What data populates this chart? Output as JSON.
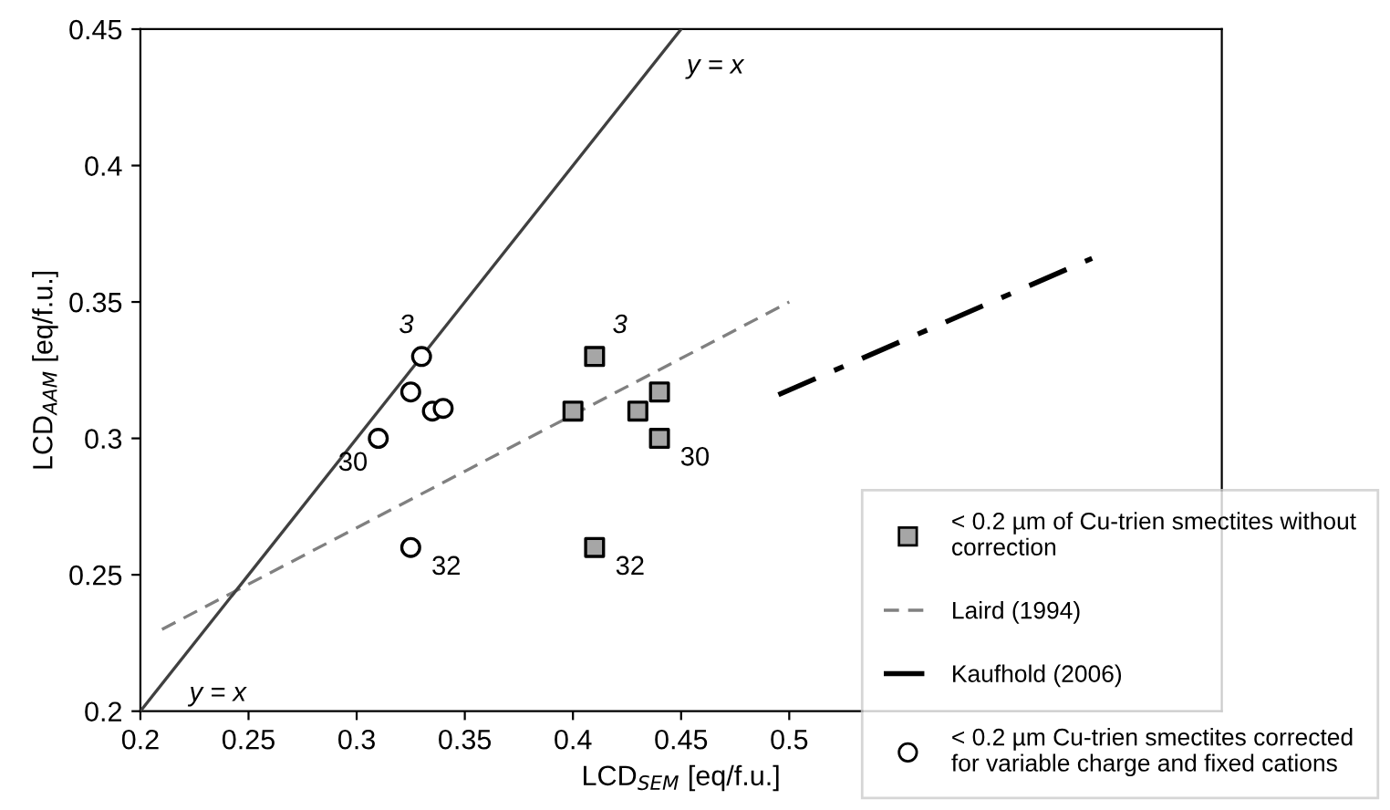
{
  "chart_data": {
    "type": "scatter",
    "xlabel": "LCD$_{SEM}$ [eq/f.u.]",
    "ylabel": "LCD$_{AAM}$ [eq/f.u.]",
    "xlim": [
      0.2,
      0.7
    ],
    "xticks": [
      0.2,
      0.25,
      0.3,
      0.35,
      0.4,
      0.45,
      0.5
    ],
    "ylim": [
      0.2,
      0.45
    ],
    "yticks": [
      0.2,
      0.25,
      0.3,
      0.35,
      0.4,
      0.45
    ],
    "grid": false,
    "legend": "bottom right",
    "series": [
      {
        "name": "< 0.2 µm of Cu-trien smectites without correction",
        "marker": "square",
        "color": "#a6a6a6",
        "x": [
          0.41,
          0.4,
          0.43,
          0.44,
          0.44,
          0.41
        ],
        "values": [
          0.33,
          0.31,
          0.31,
          0.317,
          0.3,
          0.26
        ]
      },
      {
        "name": "Laird (1994)",
        "type": "line",
        "marker": "none",
        "line_style": "dashed",
        "color": "#808080",
        "x": [
          0.21,
          0.5
        ],
        "values": [
          0.23,
          0.35
        ]
      },
      {
        "name": "Kaufhold (2006)",
        "type": "line",
        "marker": "none",
        "line_style": "dashdot",
        "color": "#000000",
        "x": [
          0.495,
          0.64
        ],
        "values": [
          0.316,
          0.366
        ]
      },
      {
        "name": "< 0.2 µm Cu-trien smectites corrected for variable charge and fixed cations",
        "marker": "circle",
        "color": "#ffffff",
        "x": [
          0.33,
          0.325,
          0.335,
          0.34,
          0.31,
          0.325
        ],
        "values": [
          0.33,
          0.317,
          0.31,
          0.311,
          0.3,
          0.26
        ]
      },
      {
        "type": "line",
        "marker": "none",
        "line_style": "solid",
        "color": "#404040",
        "x": [
          0.2,
          0.45
        ],
        "values": [
          0.2,
          0.45
        ]
      }
    ],
    "annotations": [
      {
        "text": "y = x",
        "x": 0.21,
        "y": 0.21
      },
      {
        "text": "y = x",
        "x": 0.44,
        "y": 0.44
      },
      {
        "text": "3",
        "x": 0.33,
        "y": 0.33
      },
      {
        "text": "30",
        "x": 0.31,
        "y": 0.3
      },
      {
        "text": "32",
        "x": 0.325,
        "y": 0.26
      },
      {
        "text": "3",
        "x": 0.41,
        "y": 0.33
      },
      {
        "text": "30",
        "x": 0.44,
        "y": 0.3
      },
      {
        "text": "32",
        "x": 0.41,
        "y": 0.26
      }
    ]
  }
}
